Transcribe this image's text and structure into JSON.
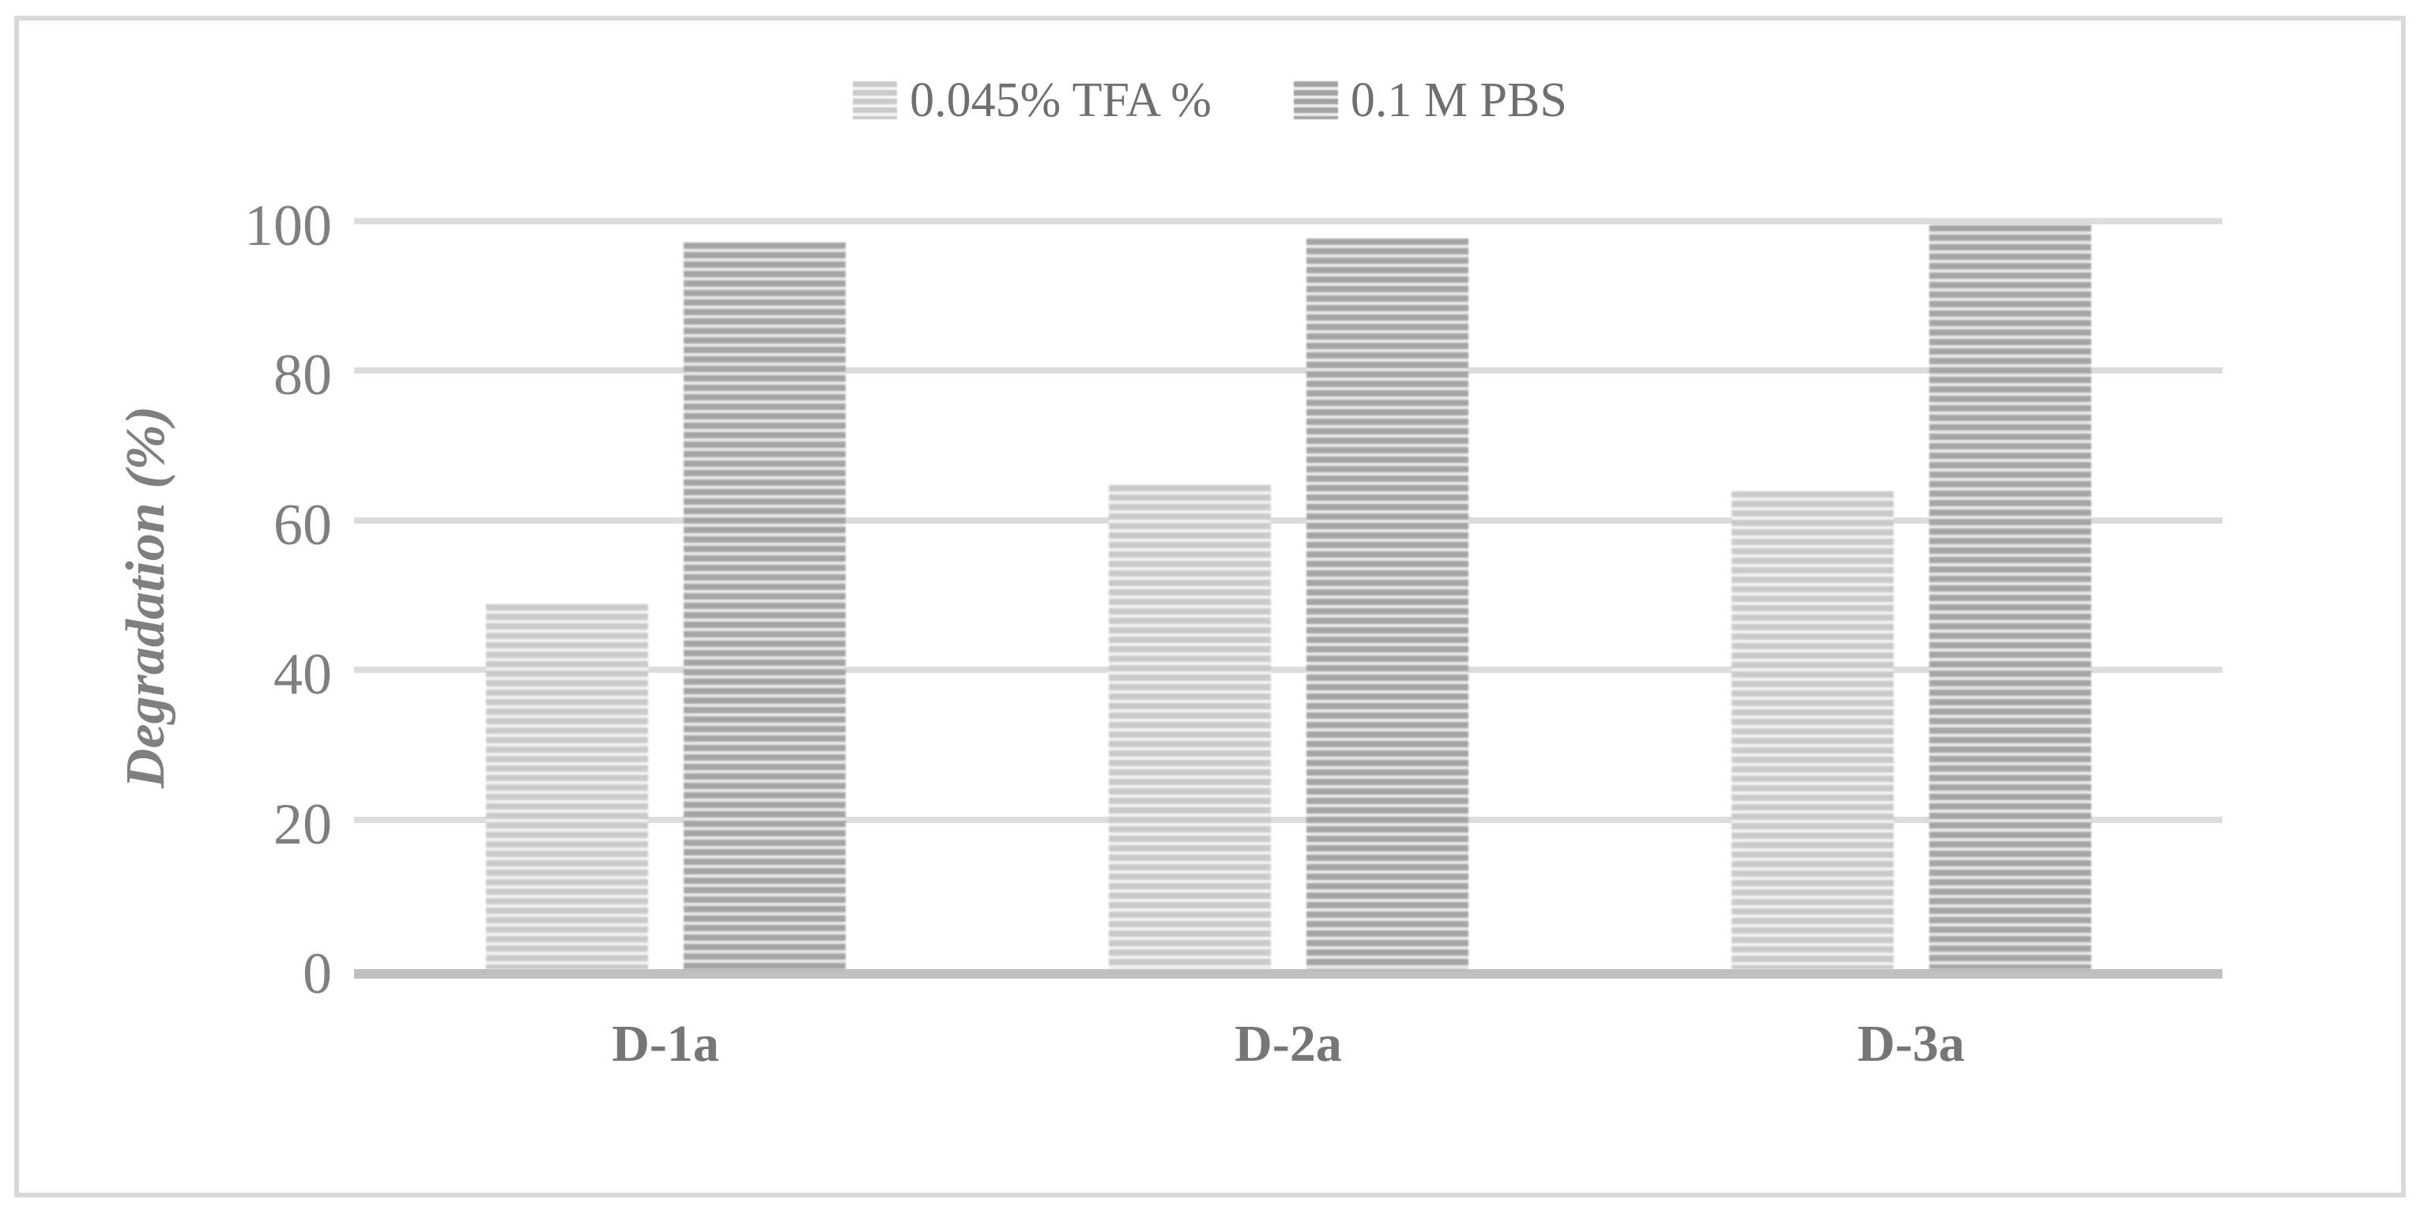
{
  "figure": {
    "kind": "bar-chart-figure",
    "border_color": "#d9d9d9",
    "background": "#ffffff"
  },
  "legend": {
    "position": "top-center",
    "items": [
      {
        "label": "0.045% TFA %",
        "series_key": "tfa"
      },
      {
        "label": "0.1 M PBS",
        "series_key": "pbs"
      }
    ]
  },
  "y_axis": {
    "label": "Degradation (%)",
    "ticks": [
      0,
      20,
      40,
      60,
      80,
      100
    ],
    "tick_color": "#7f7f7f"
  },
  "x_axis": {
    "categories": [
      "D-1a",
      "D-2a",
      "D-3a"
    ],
    "label_color": "#767676"
  },
  "chart_data": {
    "type": "bar",
    "title": "",
    "xlabel": "",
    "ylabel": "Degradation (%)",
    "ylim": [
      0,
      100
    ],
    "yticks": [
      0,
      20,
      40,
      60,
      80,
      100
    ],
    "grid": true,
    "legend_position": "top-center",
    "pattern": "horizontal-stripes",
    "categories": [
      "D-1a",
      "D-2a",
      "D-3a"
    ],
    "series": [
      {
        "name": "0.045% TFA %",
        "values": [
          48.8,
          64.7,
          63.9
        ],
        "stripe_color": "#cacaca",
        "stripe_bg": "#f4f4f4"
      },
      {
        "name": "0.1 M PBS",
        "values": [
          97.2,
          97.7,
          99.5
        ],
        "stripe_color": "#a4a4a4",
        "stripe_bg": "#ececec"
      }
    ]
  },
  "colors": {
    "gridline": "#dcdcdc",
    "axis_line": "#bfbfbf",
    "legend_text": "#6f6f6f"
  }
}
